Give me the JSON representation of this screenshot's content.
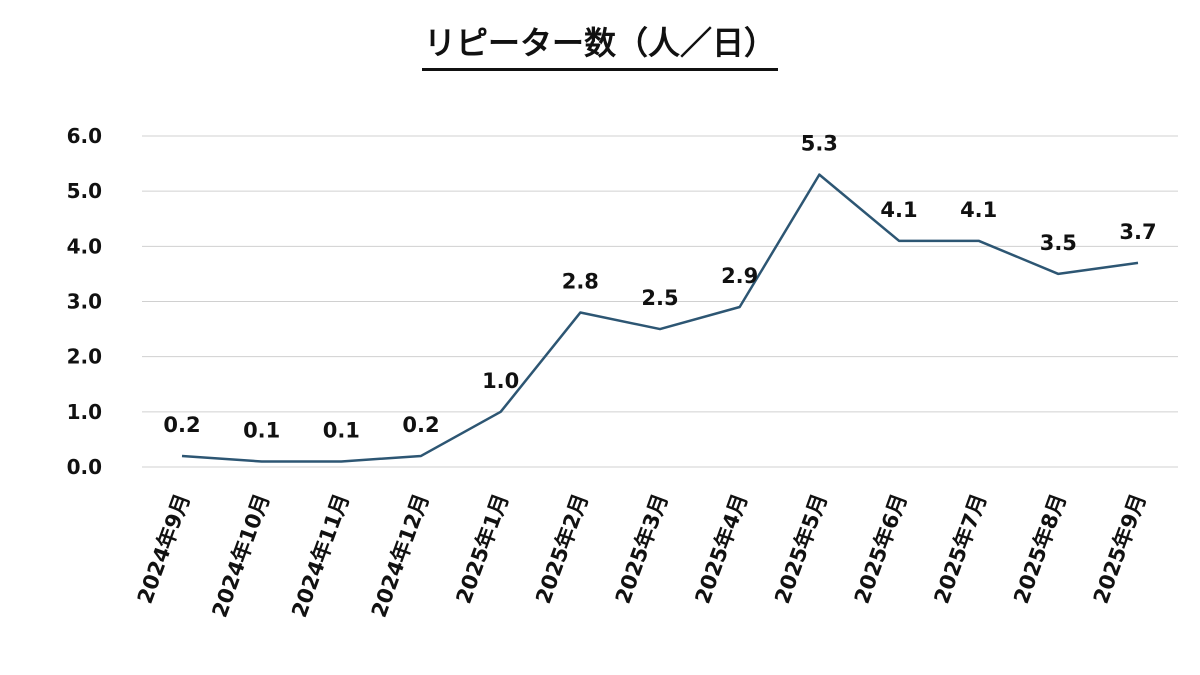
{
  "chart_data": {
    "type": "line",
    "title": "リピーター数（人／日）",
    "xlabel": "",
    "ylabel": "",
    "ylim": [
      0,
      6
    ],
    "yticks": [
      "0.0",
      "1.0",
      "2.0",
      "3.0",
      "4.0",
      "5.0",
      "6.0"
    ],
    "grid": true,
    "legend": "none",
    "categories": [
      "2024年9月",
      "2024年10月",
      "2024年11月",
      "2024年12月",
      "2025年1月",
      "2025年2月",
      "2025年3月",
      "2025年4月",
      "2025年5月",
      "2025年6月",
      "2025年7月",
      "2025年8月",
      "2025年9月"
    ],
    "values": [
      0.2,
      0.1,
      0.1,
      0.2,
      1.0,
      2.8,
      2.5,
      2.9,
      5.3,
      4.1,
      4.1,
      3.5,
      3.7
    ],
    "data_labels": [
      "0.2",
      "0.1",
      "0.1",
      "0.2",
      "1.0",
      "2.8",
      "2.5",
      "2.9",
      "5.3",
      "4.1",
      "4.1",
      "3.5",
      "3.7"
    ],
    "colors": {
      "line": "#2d5673",
      "grid": "#d0d0d0",
      "text": "#111111"
    }
  }
}
